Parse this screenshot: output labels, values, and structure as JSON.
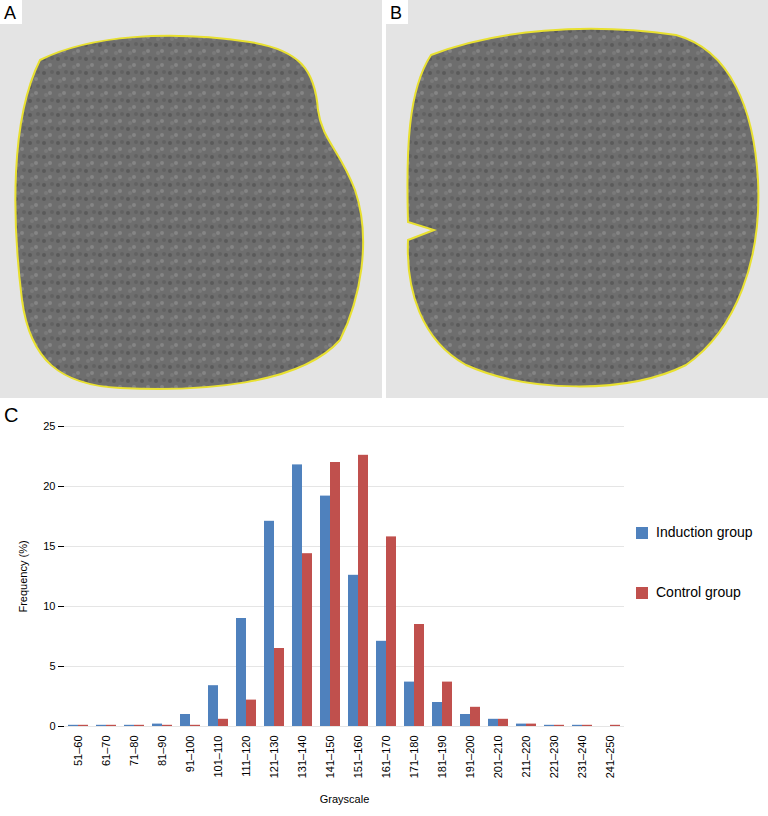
{
  "image_panels": [
    {
      "label": "A"
    },
    {
      "label": "B"
    }
  ],
  "chart_data": {
    "type": "bar",
    "annotations": [
      "C"
    ],
    "x_label": "Grayscale",
    "y_label": "Frequency (%)",
    "categories": [
      "51–60",
      "61–70",
      "71–80",
      "81–90",
      "91–100",
      "101–110",
      "111–120",
      "121–130",
      "131–140",
      "141–150",
      "151–160",
      "161–170",
      "171–180",
      "181–190",
      "191–200",
      "201–210",
      "211–220",
      "221–230",
      "231–240",
      "241–250"
    ],
    "series": [
      {
        "name": "Induction group",
        "color": "#4f81bd",
        "values": [
          0.1,
          0.1,
          0.1,
          0.2,
          1.0,
          3.4,
          9.0,
          17.1,
          21.8,
          19.2,
          12.6,
          7.1,
          3.7,
          2.0,
          1.0,
          0.6,
          0.2,
          0.1,
          0.1,
          0.0
        ]
      },
      {
        "name": "Control group",
        "color": "#c0504d",
        "values": [
          0.1,
          0.1,
          0.1,
          0.1,
          0.1,
          0.6,
          2.2,
          6.5,
          14.4,
          22.0,
          22.6,
          15.8,
          8.5,
          3.7,
          1.6,
          0.6,
          0.2,
          0.1,
          0.1,
          0.1
        ]
      }
    ],
    "ylim": [
      0,
      25
    ],
    "yticks": [
      0,
      5,
      10,
      15,
      20,
      25
    ],
    "grid": true,
    "legend": "right"
  }
}
